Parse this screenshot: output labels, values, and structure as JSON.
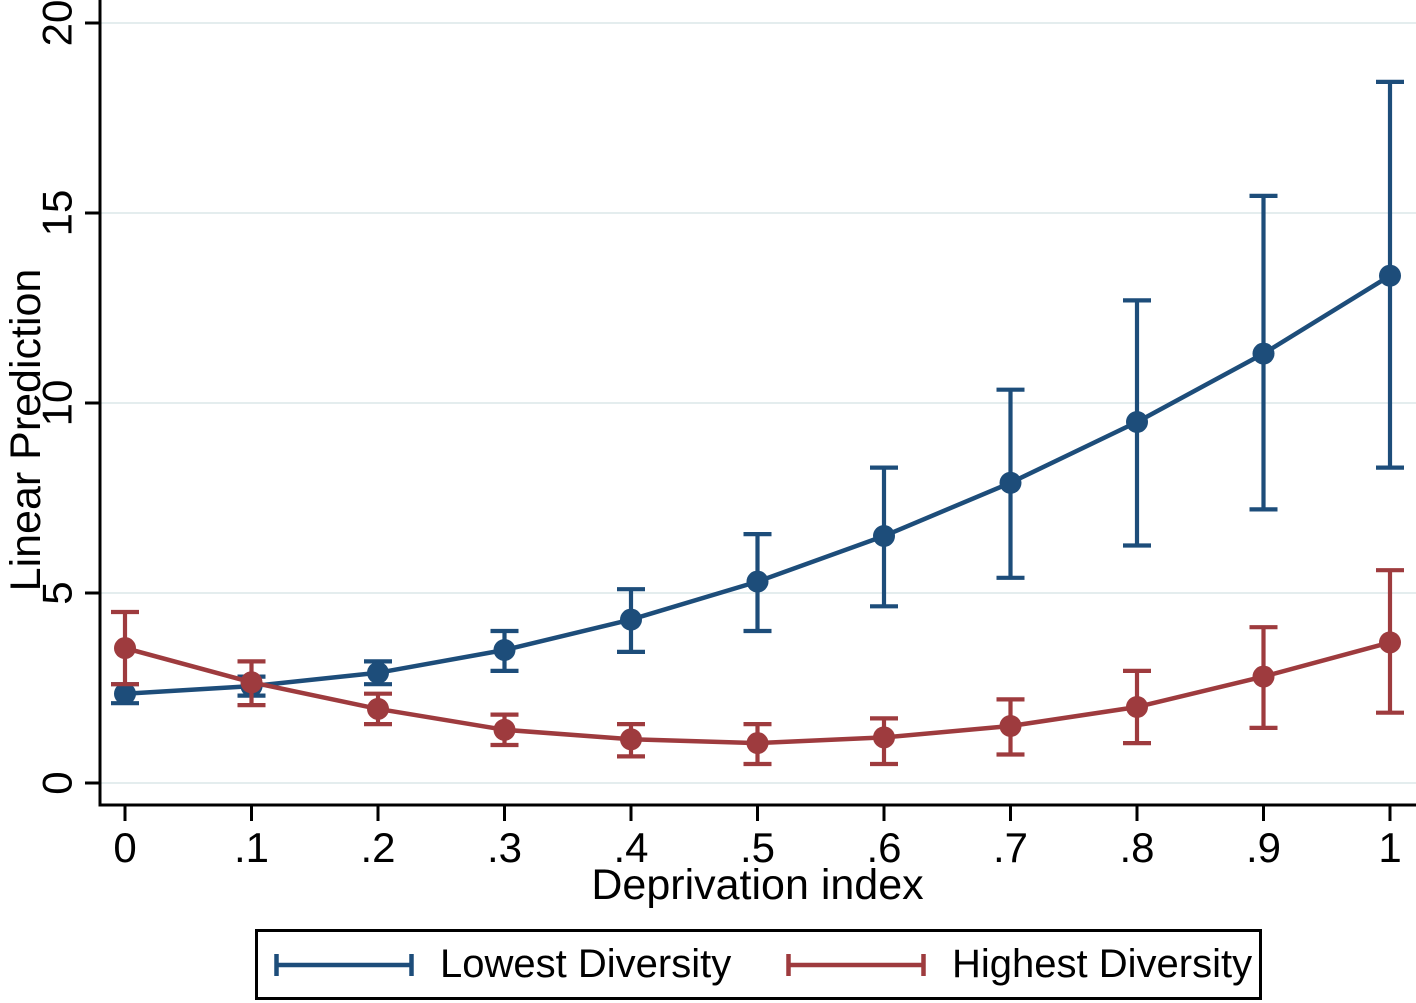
{
  "figure": {
    "background": "#ffffff",
    "axis_color": "#000000",
    "grid_color": "#e4edee",
    "text_color": "#000000"
  },
  "chart_data": {
    "type": "line",
    "title": "",
    "xlabel": "Deprivation index",
    "ylabel": "Linear Prediction",
    "x": [
      0,
      0.1,
      0.2,
      0.3,
      0.4,
      0.5,
      0.6,
      0.7,
      0.8,
      0.9,
      1
    ],
    "x_tick_labels": [
      "0",
      ".1",
      ".2",
      ".3",
      ".4",
      ".5",
      ".6",
      ".7",
      ".8",
      ".9",
      "1"
    ],
    "y_ticks": [
      0,
      5,
      10,
      15,
      20
    ],
    "y_tick_labels": [
      "0",
      "5",
      "10",
      "15",
      "20"
    ],
    "xlim": [
      -0.02,
      1.02
    ],
    "ylim": [
      -0.6,
      20.6
    ],
    "grid": true,
    "legend_position": "bottom",
    "error_bars": true,
    "series": [
      {
        "name": "Lowest Diversity",
        "color": "#1d4d7a",
        "values": [
          2.35,
          2.55,
          2.9,
          3.5,
          4.3,
          5.3,
          6.5,
          7.9,
          9.5,
          11.3,
          13.35
        ],
        "ci_low": [
          2.1,
          2.3,
          2.6,
          2.95,
          3.45,
          4.0,
          4.65,
          5.4,
          6.25,
          7.2,
          8.3
        ],
        "ci_high": [
          2.6,
          2.8,
          3.2,
          4.0,
          5.1,
          6.55,
          8.3,
          10.35,
          12.7,
          15.45,
          18.45
        ]
      },
      {
        "name": "Highest Diversity",
        "color": "#9e3b3e",
        "values": [
          3.55,
          2.65,
          1.95,
          1.4,
          1.15,
          1.05,
          1.2,
          1.5,
          2.0,
          2.8,
          3.7
        ],
        "ci_low": [
          2.6,
          2.05,
          1.55,
          1.0,
          0.7,
          0.5,
          0.5,
          0.75,
          1.05,
          1.45,
          1.85
        ],
        "ci_high": [
          4.5,
          3.2,
          2.35,
          1.8,
          1.55,
          1.55,
          1.7,
          2.2,
          2.95,
          4.1,
          5.6
        ]
      }
    ]
  }
}
